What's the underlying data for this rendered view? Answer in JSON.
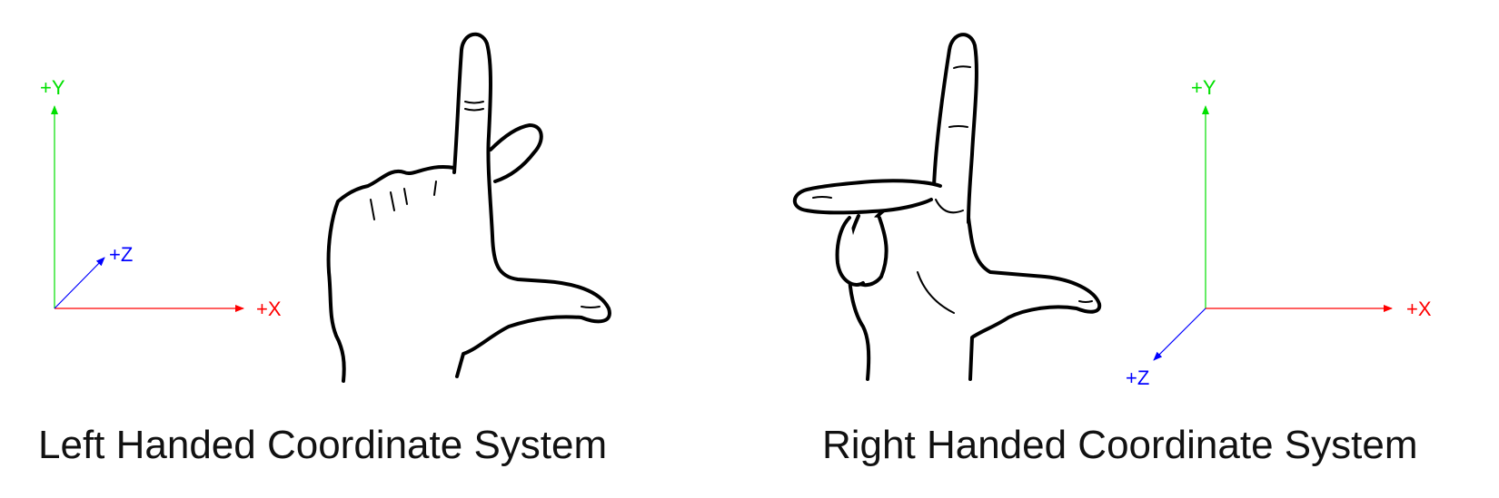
{
  "left": {
    "caption": "Left Handed Coordinate System",
    "axes": {
      "y": "+Y",
      "x": "+X",
      "z": "+Z"
    }
  },
  "right": {
    "caption": "Right Handed Coordinate System",
    "axes": {
      "y": "+Y",
      "x": "+X",
      "z": "+Z"
    }
  },
  "colors": {
    "x_axis": "#ff0000",
    "y_axis": "#00e000",
    "z_axis": "#0000ff",
    "hand_outline": "#000000"
  }
}
